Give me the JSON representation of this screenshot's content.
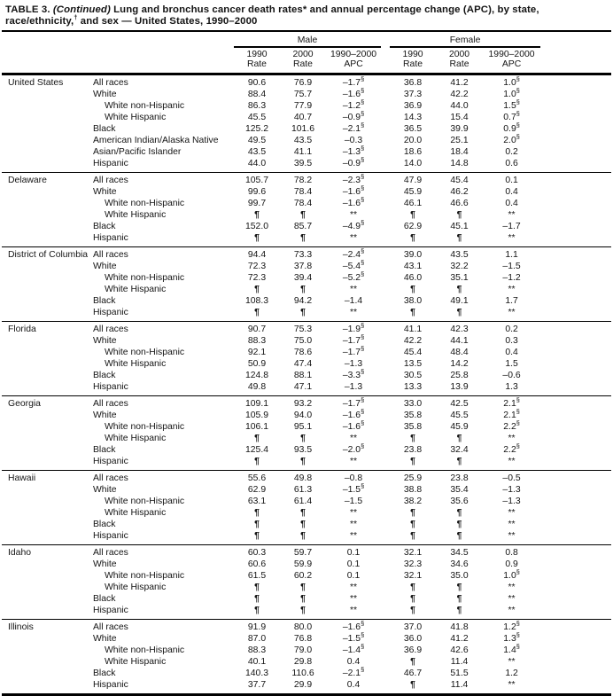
{
  "title": {
    "label": "TABLE 3.",
    "continued": " (Continued)",
    "part1": " Lung and bronchus cancer death rates",
    "star": "*",
    "part2": " and annual percentage change (APC), by state, race/ethnicity,",
    "dagger": "†",
    "part3": " and sex — United States, 1990–2000"
  },
  "header": {
    "male": "Male",
    "female": "Female",
    "subcols": [
      {
        "line1": "1990",
        "line2": "Rate"
      },
      {
        "line1": "2000",
        "line2": "Rate"
      },
      {
        "line1": "1990–2000",
        "line2": "APC"
      }
    ]
  },
  "symbols": {
    "suppressed_rate": "¶",
    "suppressed_apc": "**",
    "significance": "§"
  },
  "sections": [
    {
      "state": "United States",
      "rows": [
        {
          "race": "All races",
          "indent": false,
          "values": [
            "90.6",
            "76.9",
            "–1.7§",
            "36.8",
            "41.2",
            "1.0§"
          ]
        },
        {
          "race": "White",
          "indent": false,
          "values": [
            "88.4",
            "75.7",
            "–1.6§",
            "37.3",
            "42.2",
            "1.0§"
          ]
        },
        {
          "race": "White non-Hispanic",
          "indent": true,
          "values": [
            "86.3",
            "77.9",
            "–1.2§",
            "36.9",
            "44.0",
            "1.5§"
          ]
        },
        {
          "race": "White Hispanic",
          "indent": true,
          "values": [
            "45.5",
            "40.7",
            "–0.9§",
            "14.3",
            "15.4",
            "0.7§"
          ]
        },
        {
          "race": "Black",
          "indent": false,
          "values": [
            "125.2",
            "101.6",
            "–2.1§",
            "36.5",
            "39.9",
            "0.9§"
          ]
        },
        {
          "race": "American Indian/Alaska Native",
          "indent": false,
          "values": [
            "49.5",
            "43.5",
            "–0.3",
            "20.0",
            "25.1",
            "2.0§"
          ]
        },
        {
          "race": "Asian/Pacific Islander",
          "indent": false,
          "values": [
            "43.5",
            "41.1",
            "–1.3§",
            "18.6",
            "18.4",
            "0.2"
          ]
        },
        {
          "race": "Hispanic",
          "indent": false,
          "values": [
            "44.0",
            "39.5",
            "–0.9§",
            "14.0",
            "14.8",
            "0.6"
          ]
        }
      ]
    },
    {
      "state": "Delaware",
      "rows": [
        {
          "race": "All races",
          "indent": false,
          "values": [
            "105.7",
            "78.2",
            "–2.3§",
            "47.9",
            "45.4",
            "0.1"
          ]
        },
        {
          "race": "White",
          "indent": false,
          "values": [
            "99.6",
            "78.4",
            "–1.6§",
            "45.9",
            "46.2",
            "0.4"
          ]
        },
        {
          "race": "White non-Hispanic",
          "indent": true,
          "values": [
            "99.7",
            "78.4",
            "–1.6§",
            "46.1",
            "46.6",
            "0.4"
          ]
        },
        {
          "race": "White Hispanic",
          "indent": true,
          "values": [
            "¶",
            "¶",
            "**",
            "¶",
            "¶",
            "**"
          ]
        },
        {
          "race": "Black",
          "indent": false,
          "values": [
            "152.0",
            "85.7",
            "–4.9§",
            "62.9",
            "45.1",
            "–1.7"
          ]
        },
        {
          "race": "Hispanic",
          "indent": false,
          "values": [
            "¶",
            "¶",
            "**",
            "¶",
            "¶",
            "**"
          ]
        }
      ]
    },
    {
      "state": "District of Columbia",
      "rows": [
        {
          "race": "All races",
          "indent": false,
          "values": [
            "94.4",
            "73.3",
            "–2.4§",
            "39.0",
            "43.5",
            "1.1"
          ]
        },
        {
          "race": "White",
          "indent": false,
          "values": [
            "72.3",
            "37.8",
            "–5.4§",
            "43.1",
            "32.2",
            "–1.5"
          ]
        },
        {
          "race": "White non-Hispanic",
          "indent": true,
          "values": [
            "72.3",
            "39.4",
            "–5.2§",
            "46.0",
            "35.1",
            "–1.2"
          ]
        },
        {
          "race": "White Hispanic",
          "indent": true,
          "values": [
            "¶",
            "¶",
            "**",
            "¶",
            "¶",
            "**"
          ]
        },
        {
          "race": "Black",
          "indent": false,
          "values": [
            "108.3",
            "94.2",
            "–1.4",
            "38.0",
            "49.1",
            "1.7"
          ]
        },
        {
          "race": "Hispanic",
          "indent": false,
          "values": [
            "¶",
            "¶",
            "**",
            "¶",
            "¶",
            "**"
          ]
        }
      ]
    },
    {
      "state": "Florida",
      "rows": [
        {
          "race": "All races",
          "indent": false,
          "values": [
            "90.7",
            "75.3",
            "–1.9§",
            "41.1",
            "42.3",
            "0.2"
          ]
        },
        {
          "race": "White",
          "indent": false,
          "values": [
            "88.3",
            "75.0",
            "–1.7§",
            "42.2",
            "44.1",
            "0.3"
          ]
        },
        {
          "race": "White non-Hispanic",
          "indent": true,
          "values": [
            "92.1",
            "78.6",
            "–1.7§",
            "45.4",
            "48.4",
            "0.4"
          ]
        },
        {
          "race": "White Hispanic",
          "indent": true,
          "values": [
            "50.9",
            "47.4",
            "–1.3",
            "13.5",
            "14.2",
            "1.5"
          ]
        },
        {
          "race": "Black",
          "indent": false,
          "values": [
            "124.8",
            "88.1",
            "–3.3§",
            "30.5",
            "25.8",
            "–0.6"
          ]
        },
        {
          "race": "Hispanic",
          "indent": false,
          "values": [
            "49.8",
            "47.1",
            "–1.3",
            "13.3",
            "13.9",
            "1.3"
          ]
        }
      ]
    },
    {
      "state": "Georgia",
      "rows": [
        {
          "race": "All races",
          "indent": false,
          "values": [
            "109.1",
            "93.2",
            "–1.7§",
            "33.0",
            "42.5",
            "2.1§"
          ]
        },
        {
          "race": "White",
          "indent": false,
          "values": [
            "105.9",
            "94.0",
            "–1.6§",
            "35.8",
            "45.5",
            "2.1§"
          ]
        },
        {
          "race": "White non-Hispanic",
          "indent": true,
          "values": [
            "106.1",
            "95.1",
            "–1.6§",
            "35.8",
            "45.9",
            "2.2§"
          ]
        },
        {
          "race": "White Hispanic",
          "indent": true,
          "values": [
            "¶",
            "¶",
            "**",
            "¶",
            "¶",
            "**"
          ]
        },
        {
          "race": "Black",
          "indent": false,
          "values": [
            "125.4",
            "93.5",
            "–2.0§",
            "23.8",
            "32.4",
            "2.2§"
          ]
        },
        {
          "race": "Hispanic",
          "indent": false,
          "values": [
            "¶",
            "¶",
            "**",
            "¶",
            "¶",
            "**"
          ]
        }
      ]
    },
    {
      "state": "Hawaii",
      "rows": [
        {
          "race": "All races",
          "indent": false,
          "values": [
            "55.6",
            "49.8",
            "–0.8",
            "25.9",
            "23.8",
            "–0.5"
          ]
        },
        {
          "race": "White",
          "indent": false,
          "values": [
            "62.9",
            "61.3",
            "–1.5§",
            "38.8",
            "35.4",
            "–1.3"
          ]
        },
        {
          "race": "White non-Hispanic",
          "indent": true,
          "values": [
            "63.1",
            "61.4",
            "–1.5",
            "38.2",
            "35.6",
            "–1.3"
          ]
        },
        {
          "race": "White Hispanic",
          "indent": true,
          "values": [
            "¶",
            "¶",
            "**",
            "¶",
            "¶",
            "**"
          ]
        },
        {
          "race": "Black",
          "indent": false,
          "values": [
            "¶",
            "¶",
            "**",
            "¶",
            "¶",
            "**"
          ]
        },
        {
          "race": "Hispanic",
          "indent": false,
          "values": [
            "¶",
            "¶",
            "**",
            "¶",
            "¶",
            "**"
          ]
        }
      ]
    },
    {
      "state": "Idaho",
      "rows": [
        {
          "race": "All races",
          "indent": false,
          "values": [
            "60.3",
            "59.7",
            "0.1",
            "32.1",
            "34.5",
            "0.8"
          ]
        },
        {
          "race": "White",
          "indent": false,
          "values": [
            "60.6",
            "59.9",
            "0.1",
            "32.3",
            "34.6",
            "0.9"
          ]
        },
        {
          "race": "White non-Hispanic",
          "indent": true,
          "values": [
            "61.5",
            "60.2",
            "0.1",
            "32.1",
            "35.0",
            "1.0§"
          ]
        },
        {
          "race": "White Hispanic",
          "indent": true,
          "values": [
            "¶",
            "¶",
            "**",
            "¶",
            "¶",
            "**"
          ]
        },
        {
          "race": "Black",
          "indent": false,
          "values": [
            "¶",
            "¶",
            "**",
            "¶",
            "¶",
            "**"
          ]
        },
        {
          "race": "Hispanic",
          "indent": false,
          "values": [
            "¶",
            "¶",
            "**",
            "¶",
            "¶",
            "**"
          ]
        }
      ]
    },
    {
      "state": "Illinois",
      "rows": [
        {
          "race": "All races",
          "indent": false,
          "values": [
            "91.9",
            "80.0",
            "–1.6§",
            "37.0",
            "41.8",
            "1.2§"
          ]
        },
        {
          "race": "White",
          "indent": false,
          "values": [
            "87.0",
            "76.8",
            "–1.5§",
            "36.0",
            "41.2",
            "1.3§"
          ]
        },
        {
          "race": "White non-Hispanic",
          "indent": true,
          "values": [
            "88.3",
            "79.0",
            "–1.4§",
            "36.9",
            "42.6",
            "1.4§"
          ]
        },
        {
          "race": "White Hispanic",
          "indent": true,
          "values": [
            "40.1",
            "29.8",
            "0.4",
            "¶",
            "11.4",
            "**"
          ]
        },
        {
          "race": "Black",
          "indent": false,
          "values": [
            "140.3",
            "110.6",
            "–2.1§",
            "46.7",
            "51.5",
            "1.2"
          ]
        },
        {
          "race": "Hispanic",
          "indent": false,
          "values": [
            "37.7",
            "29.9",
            "0.4",
            "¶",
            "11.4",
            "**"
          ]
        }
      ]
    }
  ]
}
